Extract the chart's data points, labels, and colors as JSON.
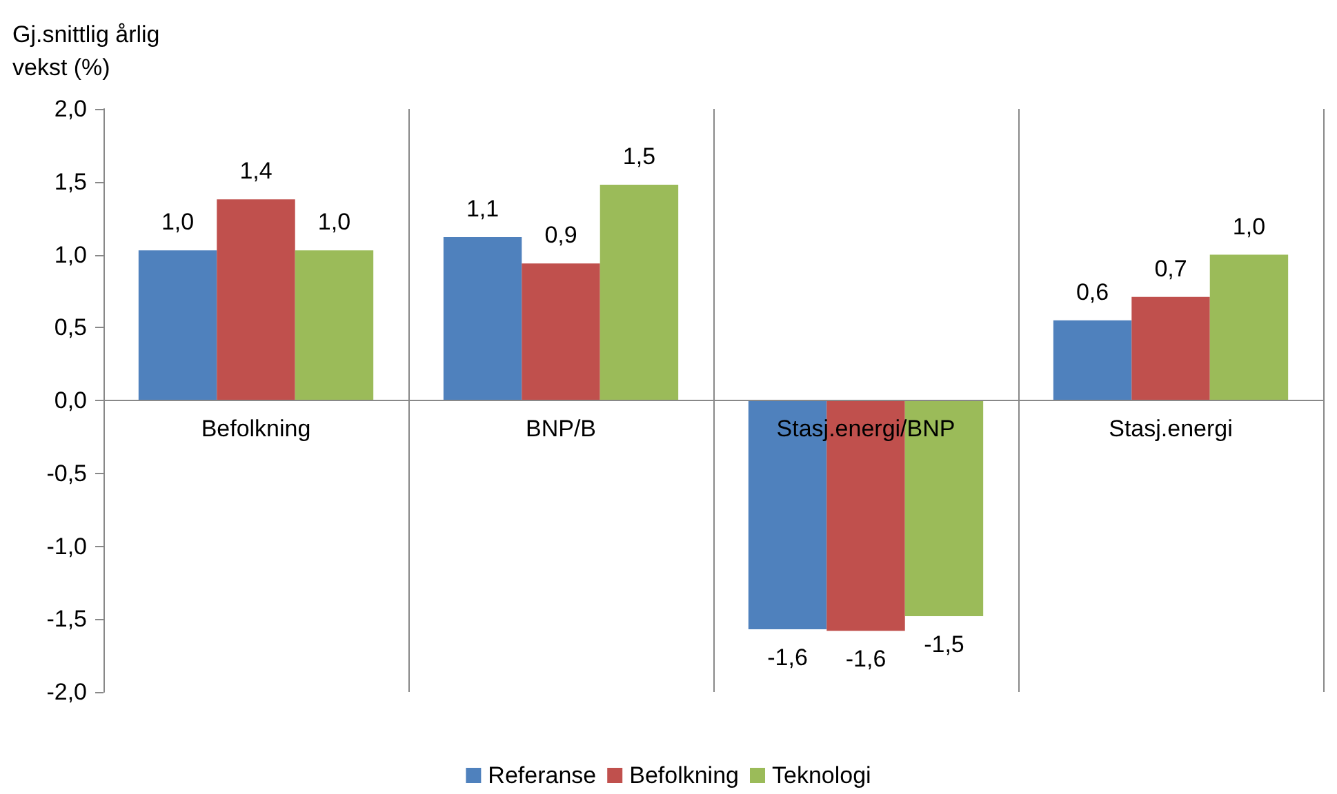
{
  "chart_data": {
    "type": "bar",
    "ylabel": "Gj.snittlig årlig\nvekst (%)",
    "categories": [
      "Befolkning",
      "BNP/B",
      "Stasj.energi/BNP",
      "Stasj.energi"
    ],
    "series": [
      {
        "name": "Referanse",
        "color": "#4f81bd",
        "values": [
          1.03,
          1.12,
          -1.57,
          0.55
        ],
        "value_labels": [
          "1,0",
          "1,1",
          "-1,6",
          "0,6"
        ]
      },
      {
        "name": "Befolkning",
        "color": "#c0504d",
        "values": [
          1.38,
          0.94,
          -1.58,
          0.71
        ],
        "value_labels": [
          "1,4",
          "0,9",
          "-1,6",
          "0,7"
        ]
      },
      {
        "name": "Teknologi",
        "color": "#9bbb59",
        "values": [
          1.03,
          1.48,
          -1.48,
          1.0
        ],
        "value_labels": [
          "1,0",
          "1,5",
          "-1,5",
          "1,0"
        ]
      }
    ],
    "ylim": [
      -2,
      2
    ],
    "yticks": [
      {
        "value": -2,
        "label": "-2,0"
      },
      {
        "value": -1.5,
        "label": "-1,5"
      },
      {
        "value": -1,
        "label": "-1,0"
      },
      {
        "value": -0.5,
        "label": "-0,5"
      },
      {
        "value": 0,
        "label": "0,0"
      },
      {
        "value": 0.5,
        "label": "0,5"
      },
      {
        "value": 1,
        "label": "1,0"
      },
      {
        "value": 1.5,
        "label": "1,5"
      },
      {
        "value": 2,
        "label": "2,0"
      }
    ],
    "grid": "x",
    "legend": "bottom"
  }
}
